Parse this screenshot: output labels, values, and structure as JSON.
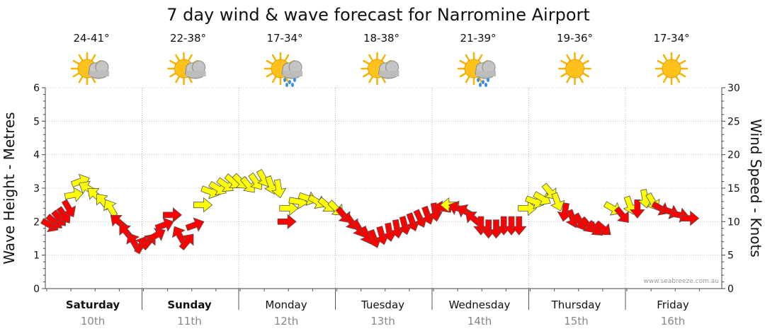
{
  "chart_data": {
    "type": "scatter",
    "title": "7 day wind & wave forecast for Narromine Airport",
    "ylabel_left": "Wave Height - Metres",
    "ylabel_right": "Wind Speed - Knots",
    "ylim_left": [
      0,
      6
    ],
    "ylim_right": [
      0,
      30
    ],
    "yticks_left": [
      "0",
      "1",
      "2",
      "3",
      "4",
      "5",
      "6"
    ],
    "yticks_right": [
      "0",
      "5",
      "10",
      "15",
      "20",
      "25",
      "30"
    ],
    "credit": "www.seabreeze.com.au",
    "days": [
      {
        "name": "Saturday",
        "date": "10th",
        "temps": "24-41°",
        "icon": "partly-cloudy-icon",
        "bold": true
      },
      {
        "name": "Sunday",
        "date": "11th",
        "temps": "22-38°",
        "icon": "partly-cloudy-icon",
        "bold": true
      },
      {
        "name": "Monday",
        "date": "12th",
        "temps": "17-34°",
        "icon": "rain-icon",
        "bold": false
      },
      {
        "name": "Tuesday",
        "date": "13th",
        "temps": "18-38°",
        "icon": "partly-cloudy-icon",
        "bold": false
      },
      {
        "name": "Wednesday",
        "date": "14th",
        "temps": "21-39°",
        "icon": "rain-icon",
        "bold": false
      },
      {
        "name": "Thursday",
        "date": "15th",
        "temps": "19-36°",
        "icon": "sunny-icon",
        "bold": false
      },
      {
        "name": "Friday",
        "date": "16th",
        "temps": "17-34°",
        "icon": "sunny-icon",
        "bold": false
      }
    ],
    "colors": {
      "strong": "#ff0000",
      "moderate": "#ffff00",
      "edge": "#555555"
    },
    "wind_series": [
      {
        "t": 0.0,
        "speed": 9.5,
        "dir": -60,
        "c": "strong"
      },
      {
        "t": 0.05,
        "speed": 10.0,
        "dir": -50,
        "c": "strong"
      },
      {
        "t": 0.1,
        "speed": 10.5,
        "dir": -40,
        "c": "strong"
      },
      {
        "t": 0.15,
        "speed": 11.0,
        "dir": -35,
        "c": "strong"
      },
      {
        "t": 0.2,
        "speed": 12.0,
        "dir": -30,
        "c": "strong"
      },
      {
        "t": 0.25,
        "speed": 14.0,
        "dir": -100,
        "c": "moderate"
      },
      {
        "t": 0.32,
        "speed": 16.0,
        "dir": -110,
        "c": "moderate"
      },
      {
        "t": 0.4,
        "speed": 15.0,
        "dir": 120,
        "c": "moderate"
      },
      {
        "t": 0.48,
        "speed": 14.0,
        "dir": 130,
        "c": "moderate"
      },
      {
        "t": 0.56,
        "speed": 13.0,
        "dir": 140,
        "c": "moderate"
      },
      {
        "t": 0.64,
        "speed": 12.0,
        "dir": 150,
        "c": "moderate"
      },
      {
        "t": 0.72,
        "speed": 10.0,
        "dir": 130,
        "c": "strong"
      },
      {
        "t": 0.8,
        "speed": 8.5,
        "dir": 140,
        "c": "strong"
      },
      {
        "t": 0.88,
        "speed": 7.0,
        "dir": 150,
        "c": "strong"
      },
      {
        "t": 0.96,
        "speed": 6.5,
        "dir": -150,
        "c": "strong"
      },
      {
        "t": 1.04,
        "speed": 7.0,
        "dir": -140,
        "c": "strong"
      },
      {
        "t": 1.12,
        "speed": 8.0,
        "dir": -120,
        "c": "strong"
      },
      {
        "t": 1.2,
        "speed": 9.5,
        "dir": -110,
        "c": "strong"
      },
      {
        "t": 1.28,
        "speed": 11.0,
        "dir": -90,
        "c": "strong"
      },
      {
        "t": 1.36,
        "speed": 8.0,
        "dir": 150,
        "c": "strong"
      },
      {
        "t": 1.44,
        "speed": 7.0,
        "dir": -140,
        "c": "strong"
      },
      {
        "t": 1.52,
        "speed": 9.5,
        "dir": -110,
        "c": "strong"
      },
      {
        "t": 1.6,
        "speed": 12.5,
        "dir": -90,
        "c": "moderate"
      },
      {
        "t": 1.68,
        "speed": 14.5,
        "dir": -70,
        "c": "moderate"
      },
      {
        "t": 1.76,
        "speed": 15.0,
        "dir": -60,
        "c": "moderate"
      },
      {
        "t": 1.84,
        "speed": 15.5,
        "dir": -55,
        "c": "moderate"
      },
      {
        "t": 1.92,
        "speed": 16.0,
        "dir": -50,
        "c": "moderate"
      },
      {
        "t": 2.0,
        "speed": 16.0,
        "dir": -45,
        "c": "moderate"
      },
      {
        "t": 2.08,
        "speed": 15.5,
        "dir": -40,
        "c": "moderate"
      },
      {
        "t": 2.16,
        "speed": 16.0,
        "dir": -35,
        "c": "moderate"
      },
      {
        "t": 2.24,
        "speed": 16.5,
        "dir": -30,
        "c": "moderate"
      },
      {
        "t": 2.32,
        "speed": 15.5,
        "dir": -20,
        "c": "moderate"
      },
      {
        "t": 2.4,
        "speed": 15.0,
        "dir": -10,
        "c": "moderate"
      },
      {
        "t": 2.48,
        "speed": 10.0,
        "dir": -90,
        "c": "strong"
      },
      {
        "t": 2.5,
        "speed": 12.0,
        "dir": -90,
        "c": "moderate"
      },
      {
        "t": 2.6,
        "speed": 13.0,
        "dir": -80,
        "c": "moderate"
      },
      {
        "t": 2.7,
        "speed": 13.5,
        "dir": -70,
        "c": "moderate"
      },
      {
        "t": 2.8,
        "speed": 13.0,
        "dir": -60,
        "c": "moderate"
      },
      {
        "t": 2.9,
        "speed": 12.5,
        "dir": -50,
        "c": "moderate"
      },
      {
        "t": 3.0,
        "speed": 12.0,
        "dir": -45,
        "c": "moderate"
      },
      {
        "t": 3.08,
        "speed": 11.0,
        "dir": -40,
        "c": "strong"
      },
      {
        "t": 3.16,
        "speed": 10.0,
        "dir": -35,
        "c": "strong"
      },
      {
        "t": 3.24,
        "speed": 9.0,
        "dir": -30,
        "c": "strong"
      },
      {
        "t": 3.32,
        "speed": 8.0,
        "dir": -25,
        "c": "strong"
      },
      {
        "t": 3.4,
        "speed": 7.5,
        "dir": -20,
        "c": "strong"
      },
      {
        "t": 3.48,
        "speed": 8.0,
        "dir": -15,
        "c": "strong"
      },
      {
        "t": 3.56,
        "speed": 8.5,
        "dir": -10,
        "c": "strong"
      },
      {
        "t": 3.64,
        "speed": 9.0,
        "dir": -10,
        "c": "strong"
      },
      {
        "t": 3.72,
        "speed": 9.5,
        "dir": -15,
        "c": "strong"
      },
      {
        "t": 3.8,
        "speed": 10.0,
        "dir": -20,
        "c": "strong"
      },
      {
        "t": 3.88,
        "speed": 10.5,
        "dir": -25,
        "c": "strong"
      },
      {
        "t": 3.96,
        "speed": 11.0,
        "dir": -20,
        "c": "strong"
      },
      {
        "t": 4.04,
        "speed": 11.5,
        "dir": -10,
        "c": "strong"
      },
      {
        "t": 4.12,
        "speed": 12.0,
        "dir": 100,
        "c": "strong"
      },
      {
        "t": 4.2,
        "speed": 12.5,
        "dir": 90,
        "c": "moderate"
      },
      {
        "t": 4.28,
        "speed": 12.0,
        "dir": 110,
        "c": "strong"
      },
      {
        "t": 4.36,
        "speed": 11.5,
        "dir": 120,
        "c": "strong"
      },
      {
        "t": 4.44,
        "speed": 10.5,
        "dir": 130,
        "c": "strong"
      },
      {
        "t": 4.52,
        "speed": 9.5,
        "dir": 0,
        "c": "strong"
      },
      {
        "t": 4.6,
        "speed": 9.0,
        "dir": 0,
        "c": "strong"
      },
      {
        "t": 4.68,
        "speed": 9.0,
        "dir": 0,
        "c": "strong"
      },
      {
        "t": 4.76,
        "speed": 9.5,
        "dir": 0,
        "c": "strong"
      },
      {
        "t": 4.84,
        "speed": 9.5,
        "dir": 0,
        "c": "strong"
      },
      {
        "t": 4.92,
        "speed": 9.5,
        "dir": 0,
        "c": "strong"
      },
      {
        "t": 5.0,
        "speed": 12.0,
        "dir": -90,
        "c": "moderate"
      },
      {
        "t": 5.08,
        "speed": 13.0,
        "dir": -70,
        "c": "moderate"
      },
      {
        "t": 5.16,
        "speed": 13.5,
        "dir": -60,
        "c": "moderate"
      },
      {
        "t": 5.24,
        "speed": 14.5,
        "dir": -40,
        "c": "moderate"
      },
      {
        "t": 5.32,
        "speed": 13.0,
        "dir": -20,
        "c": "moderate"
      },
      {
        "t": 5.4,
        "speed": 11.5,
        "dir": 10,
        "c": "strong"
      },
      {
        "t": 5.48,
        "speed": 10.5,
        "dir": -20,
        "c": "strong"
      },
      {
        "t": 5.56,
        "speed": 10.0,
        "dir": -30,
        "c": "strong"
      },
      {
        "t": 5.64,
        "speed": 9.5,
        "dir": -40,
        "c": "strong"
      },
      {
        "t": 5.72,
        "speed": 9.0,
        "dir": -45,
        "c": "strong"
      },
      {
        "t": 5.8,
        "speed": 9.0,
        "dir": -50,
        "c": "strong"
      },
      {
        "t": 5.9,
        "speed": 12.0,
        "dir": -60,
        "c": "moderate"
      },
      {
        "t": 6.0,
        "speed": 11.0,
        "dir": -40,
        "c": "strong"
      },
      {
        "t": 6.08,
        "speed": 12.5,
        "dir": -20,
        "c": "moderate"
      },
      {
        "t": 6.16,
        "speed": 12.0,
        "dir": 0,
        "c": "strong"
      },
      {
        "t": 6.24,
        "speed": 13.5,
        "dir": -10,
        "c": "moderate"
      },
      {
        "t": 6.32,
        "speed": 13.0,
        "dir": -30,
        "c": "moderate"
      },
      {
        "t": 6.4,
        "speed": 12.0,
        "dir": -60,
        "c": "strong"
      },
      {
        "t": 6.5,
        "speed": 11.5,
        "dir": -70,
        "c": "strong"
      },
      {
        "t": 6.6,
        "speed": 11.0,
        "dir": -80,
        "c": "strong"
      },
      {
        "t": 6.7,
        "speed": 10.5,
        "dir": -90,
        "c": "strong"
      }
    ]
  }
}
